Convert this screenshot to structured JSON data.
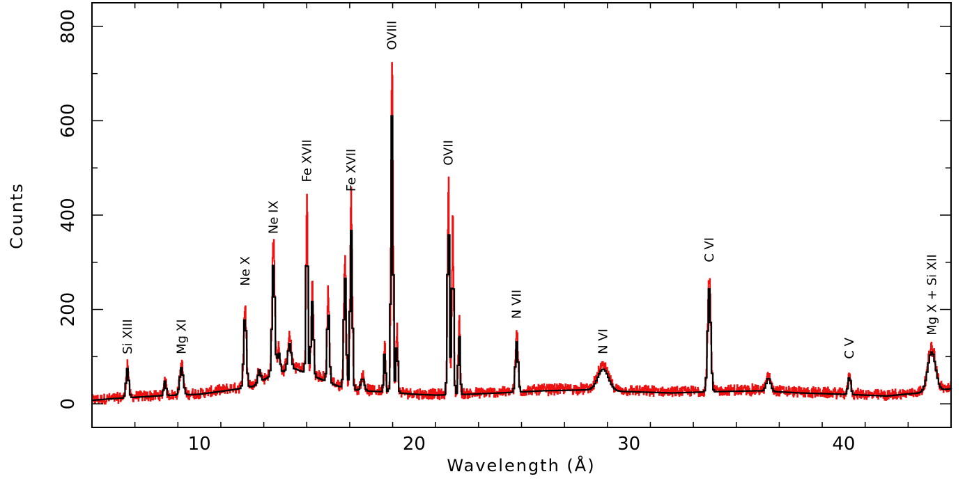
{
  "chart_data": {
    "type": "line",
    "xlabel": "Wavelength (Å)",
    "ylabel": "Counts",
    "xlim": [
      5,
      45
    ],
    "ylim": [
      -50,
      850
    ],
    "x_ticks": [
      10,
      20,
      30,
      40
    ],
    "y_ticks": [
      0,
      200,
      400,
      600,
      800
    ],
    "grid": false,
    "colors": {
      "data": "#ee1111",
      "model": "#000000",
      "frame": "#000000"
    },
    "series": [
      {
        "key": "data",
        "style": "red histogram with noise"
      },
      {
        "key": "model",
        "style": "black step histogram"
      }
    ],
    "continuum": [
      [
        5.0,
        8
      ],
      [
        6.0,
        12
      ],
      [
        8.0,
        18
      ],
      [
        10.0,
        22
      ],
      [
        11.5,
        32
      ],
      [
        12.5,
        40
      ],
      [
        13.5,
        70
      ],
      [
        14.5,
        80
      ],
      [
        15.5,
        60
      ],
      [
        16.5,
        40
      ],
      [
        17.5,
        30
      ],
      [
        18.5,
        28
      ],
      [
        20.0,
        22
      ],
      [
        21.0,
        20
      ],
      [
        22.5,
        22
      ],
      [
        24.0,
        25
      ],
      [
        26.0,
        30
      ],
      [
        28.0,
        32
      ],
      [
        30.0,
        28
      ],
      [
        32.0,
        25
      ],
      [
        34.0,
        28
      ],
      [
        36.0,
        30
      ],
      [
        38.0,
        25
      ],
      [
        40.0,
        22
      ],
      [
        42.0,
        18
      ],
      [
        43.5,
        25
      ],
      [
        45.0,
        35
      ]
    ],
    "lines": [
      {
        "label": "Si XIII",
        "x": 6.65,
        "peak": 85,
        "width": 0.06
      },
      {
        "label": "",
        "x": 8.4,
        "peak": 55,
        "width": 0.05
      },
      {
        "label": "Mg XI",
        "x": 9.17,
        "peak": 85,
        "width": 0.08
      },
      {
        "label": "Ne X",
        "x": 12.13,
        "peak": 215,
        "width": 0.06
      },
      {
        "label": "",
        "x": 12.8,
        "peak": 80,
        "width": 0.06
      },
      {
        "label": "Ne IX",
        "x": 13.45,
        "peak": 340,
        "width": 0.06
      },
      {
        "label": "",
        "x": 13.7,
        "peak": 120,
        "width": 0.06
      },
      {
        "label": "",
        "x": 14.2,
        "peak": 140,
        "width": 0.08
      },
      {
        "label": "Fe XVII",
        "x": 15.01,
        "peak": 445,
        "width": 0.04
      },
      {
        "label": "",
        "x": 15.26,
        "peak": 250,
        "width": 0.05
      },
      {
        "label": "",
        "x": 16.0,
        "peak": 235,
        "width": 0.05
      },
      {
        "label": "",
        "x": 16.78,
        "peak": 320,
        "width": 0.05
      },
      {
        "label": "Fe XVII",
        "x": 17.07,
        "peak": 430,
        "width": 0.05
      },
      {
        "label": "",
        "x": 17.6,
        "peak": 60,
        "width": 0.08
      },
      {
        "label": "",
        "x": 18.63,
        "peak": 130,
        "width": 0.04
      },
      {
        "label": "OVIII",
        "x": 18.97,
        "peak": 730,
        "width": 0.045
      },
      {
        "label": "",
        "x": 19.2,
        "peak": 160,
        "width": 0.04
      },
      {
        "label": "OVII",
        "x": 21.6,
        "peak": 480,
        "width": 0.045
      },
      {
        "label": "",
        "x": 21.8,
        "peak": 390,
        "width": 0.04
      },
      {
        "label": "",
        "x": 22.1,
        "peak": 180,
        "width": 0.04
      },
      {
        "label": "N VII",
        "x": 24.78,
        "peak": 150,
        "width": 0.06
      },
      {
        "label": "N VI",
        "x": 28.8,
        "peak": 80,
        "width": 0.25
      },
      {
        "label": "C VI",
        "x": 33.74,
        "peak": 275,
        "width": 0.07
      },
      {
        "label": "",
        "x": 36.5,
        "peak": 60,
        "width": 0.1
      },
      {
        "label": "C V",
        "x": 40.27,
        "peak": 65,
        "width": 0.06
      },
      {
        "label": "Mg X + Si XII",
        "x": 44.1,
        "peak": 120,
        "width": 0.18
      }
    ],
    "labels": [
      {
        "text": "Si XIII",
        "x": 6.65,
        "y": 105
      },
      {
        "text": "Mg XI",
        "x": 9.17,
        "y": 105
      },
      {
        "text": "Ne X",
        "x": 12.13,
        "y": 250
      },
      {
        "text": "Ne IX",
        "x": 13.45,
        "y": 360
      },
      {
        "text": "Fe XVII",
        "x": 15.01,
        "y": 470
      },
      {
        "text": "Fe XVII",
        "x": 17.07,
        "y": 450
      },
      {
        "text": "OVIII",
        "x": 18.97,
        "y": 750
      },
      {
        "text": "OVII",
        "x": 21.6,
        "y": 505
      },
      {
        "text": "N VII",
        "x": 24.78,
        "y": 180
      },
      {
        "text": "N VI",
        "x": 28.8,
        "y": 105
      },
      {
        "text": "C VI",
        "x": 33.74,
        "y": 300
      },
      {
        "text": "C V",
        "x": 40.27,
        "y": 95
      },
      {
        "text": "Mg X + Si XII",
        "x": 44.1,
        "y": 145
      }
    ]
  }
}
